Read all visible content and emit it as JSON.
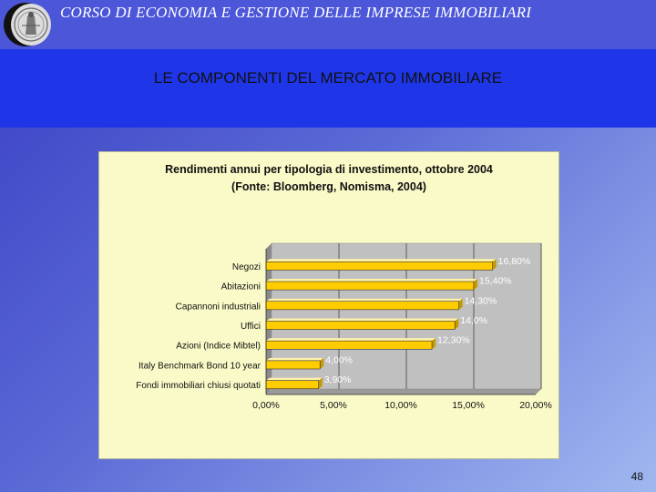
{
  "header": {
    "course_title": "CORSO DI ECONOMIA E GESTIONE DELLE IMPRESE IMMOBILIARI",
    "slide_title": "LE COMPONENTI DEL MERCATO IMMOBILIARE"
  },
  "page_number": "48",
  "colors": {
    "top_bar": "#4b56d8",
    "title_band": "#1f36e8",
    "chart_background": "#fafac8",
    "plot_area": "#c0c0c0",
    "bar_fill": "#ffcc00",
    "value_label": "#ffffff"
  },
  "icons": {
    "logo": "university-seal-logo"
  },
  "chart_data": {
    "type": "bar",
    "orientation": "horizontal",
    "title": "Rendimenti annui per tipologia di investimento, ottobre 2004",
    "subtitle": "(Fonte: Bloomberg, Nomisma, 2004)",
    "categories": [
      "Negozi",
      "Abitazioni",
      "Capannoni industriali",
      "Uffici",
      "Azioni (Indice Mibtel)",
      "Italy Benchmark Bond 10 year",
      "Fondi immobiliari chiusi quotati"
    ],
    "values": [
      16.8,
      15.4,
      14.3,
      14.0,
      12.3,
      4.0,
      3.9
    ],
    "value_labels": [
      "16,80%",
      "15,40%",
      "14,30%",
      "14,0%",
      "12,30%",
      "4,00%",
      "3,90%"
    ],
    "x_ticks": [
      "0,00%",
      "5,00%",
      "10,00%",
      "15,00%",
      "20,00%"
    ],
    "xlim": [
      0,
      20
    ],
    "xlabel": "",
    "ylabel": "",
    "grid": "vertical",
    "legend": "none"
  }
}
